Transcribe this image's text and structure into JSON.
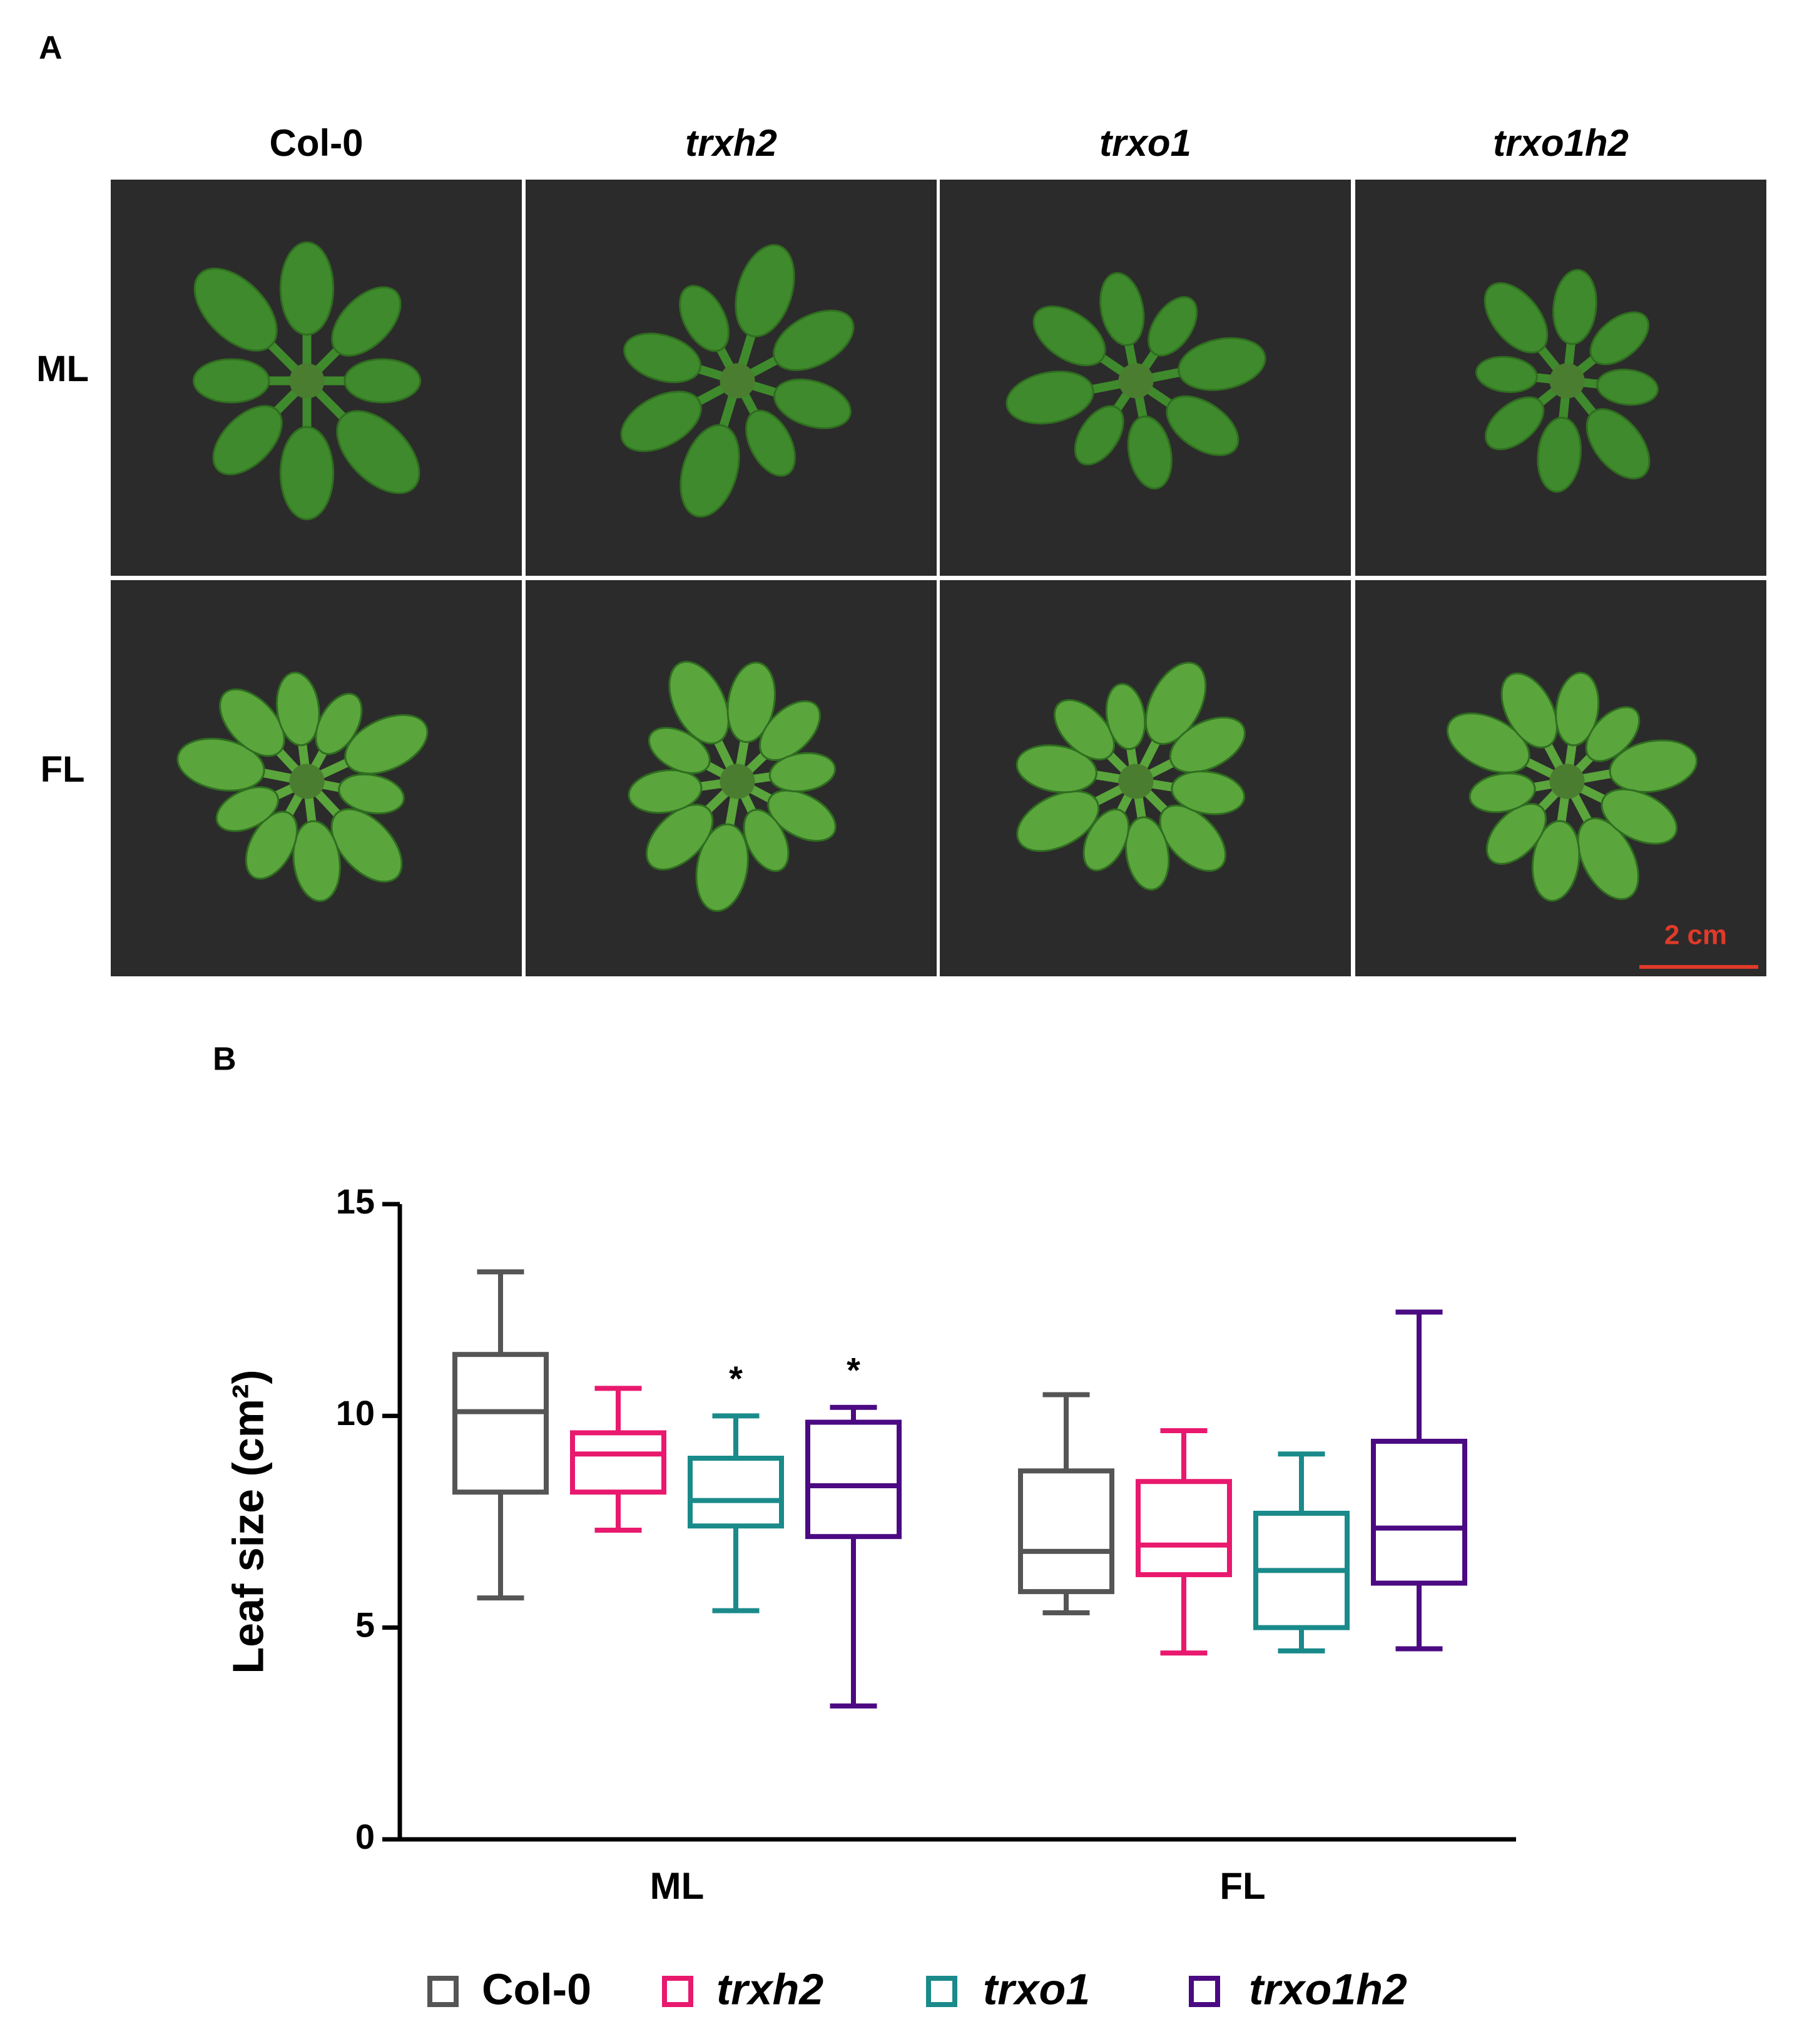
{
  "panel_labels": [
    "A",
    "B"
  ],
  "photo_grid": {
    "columns": [
      "Col-0",
      "trxh2",
      "trxo1",
      "trxo1h2"
    ],
    "rows": [
      "ML",
      "FL"
    ],
    "scale_bar": "2 cm"
  },
  "chart_data": {
    "type": "box",
    "y_label": "Leaf size (cm²)",
    "categories": [
      "ML",
      "FL"
    ],
    "ylim": [
      0,
      15
    ],
    "yticks": [
      0,
      5,
      10,
      15
    ],
    "series": [
      {
        "name": "Col-0",
        "color": "#555555",
        "values": [
          {
            "min": 5.7,
            "q1": 8.2,
            "median": 10.1,
            "q3": 11.45,
            "max": 13.4
          },
          {
            "min": 5.35,
            "q1": 5.85,
            "median": 6.8,
            "q3": 8.7,
            "max": 10.5
          }
        ]
      },
      {
        "name": "trxh2",
        "color": "#e8196e",
        "values": [
          {
            "min": 7.3,
            "q1": 8.2,
            "median": 9.1,
            "q3": 9.6,
            "max": 10.65
          },
          {
            "min": 4.4,
            "q1": 6.25,
            "median": 6.95,
            "q3": 8.45,
            "max": 9.65
          }
        ]
      },
      {
        "name": "trxo1",
        "color": "#1a8a8a",
        "significance": [
          "*",
          null
        ],
        "values": [
          {
            "min": 5.4,
            "q1": 7.4,
            "median": 8.0,
            "q3": 9.0,
            "max": 10.0
          },
          {
            "min": 4.45,
            "q1": 5.0,
            "median": 6.35,
            "q3": 7.7,
            "max": 9.1
          }
        ]
      },
      {
        "name": "trxo1h2",
        "color": "#4b0a82",
        "significance": [
          "*",
          null
        ],
        "values": [
          {
            "min": 3.15,
            "q1": 7.15,
            "median": 8.35,
            "q3": 9.85,
            "max": 10.2
          },
          {
            "min": 4.5,
            "q1": 6.05,
            "median": 7.35,
            "q3": 9.4,
            "max": 12.45
          }
        ]
      }
    ]
  }
}
